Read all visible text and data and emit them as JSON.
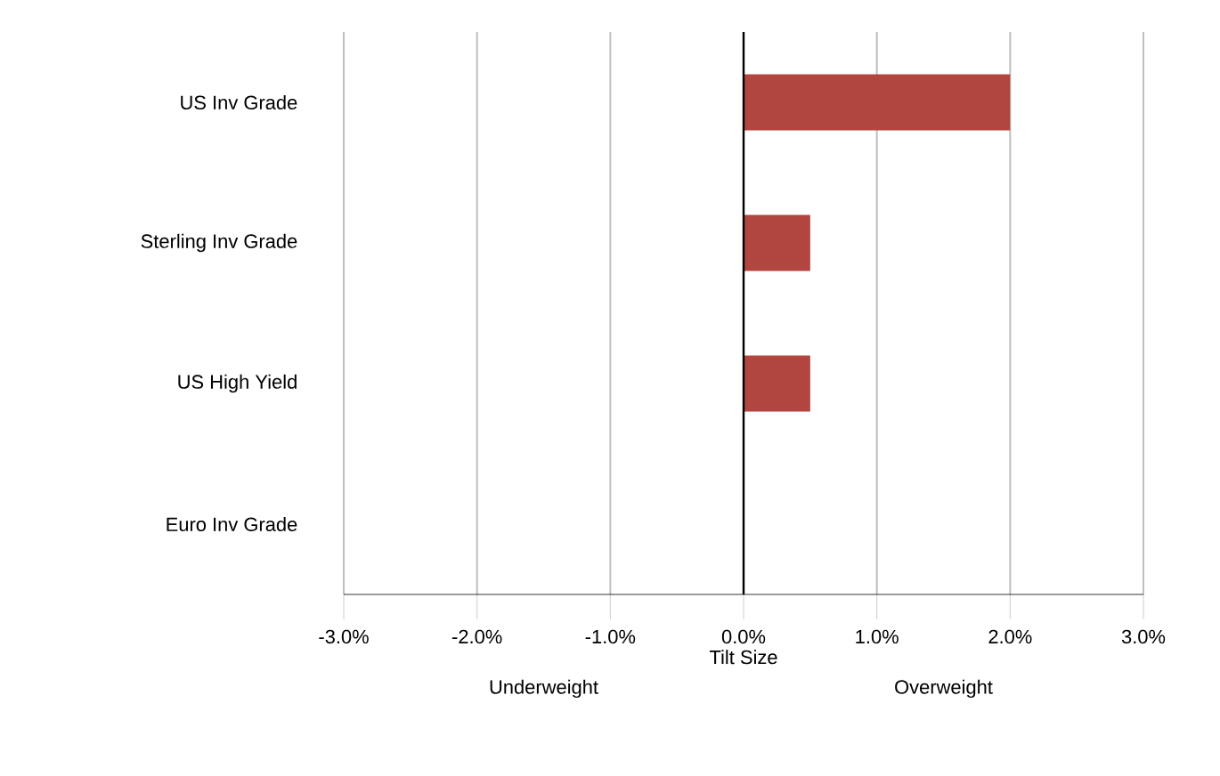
{
  "chart_data": {
    "type": "bar",
    "orientation": "horizontal",
    "xlabel": "Tilt Size",
    "categories": [
      "US Inv Grade",
      "Sterling Inv Grade",
      "US High Yield",
      "Euro Inv Grade"
    ],
    "values": [
      2.0,
      0.5,
      0.5,
      0
    ],
    "color": "#b0463f",
    "xlim": [
      -3,
      3
    ],
    "xticks": [
      {
        "value": -3,
        "label": "-3.0%"
      },
      {
        "value": -2,
        "label": "-2.0%"
      },
      {
        "value": -1,
        "label": "-1.0%"
      },
      {
        "value": 0,
        "label": "0.0%"
      },
      {
        "value": 1,
        "label": "1.0%"
      },
      {
        "value": 2,
        "label": "2.0%"
      },
      {
        "value": 3,
        "label": "3.0%"
      }
    ],
    "grid": "x",
    "ref_lines": [
      {
        "axis": "x",
        "value": 0,
        "color": "#000000"
      }
    ],
    "annotations": [
      "Underweight",
      "Overweight"
    ]
  }
}
